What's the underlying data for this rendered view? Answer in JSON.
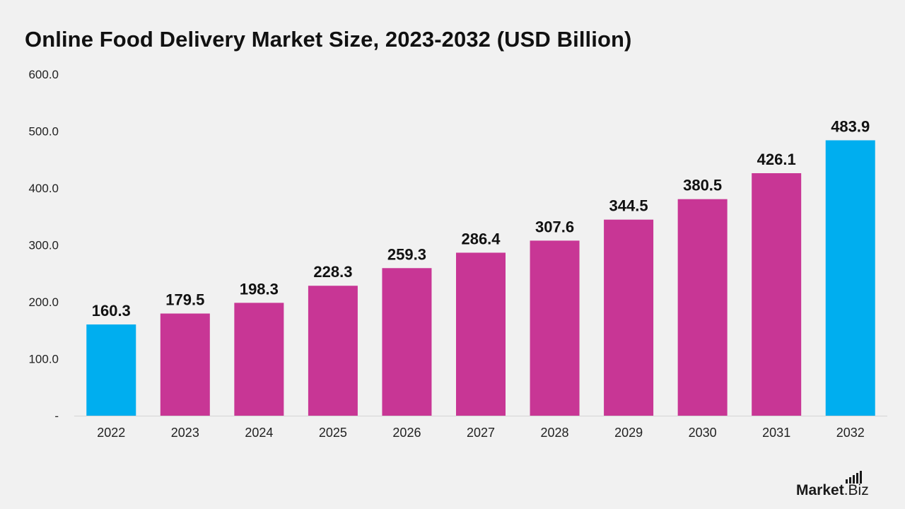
{
  "title": "Online Food Delivery Market Size, 2023-2032 (USD Billion)",
  "logo": {
    "text": "Market.Biz",
    "part1": "Market",
    "part2": ".Biz"
  },
  "colors": {
    "highlight": "#00aeef",
    "primary": "#c83695",
    "text": "#111111",
    "axis": "#222222",
    "baseline": "#d4d4d4",
    "background": "#f1f1f1"
  },
  "chart_data": {
    "type": "bar",
    "title": "Online Food Delivery Market Size, 2023-2032 (USD Billion)",
    "categories": [
      "2022",
      "2023",
      "2024",
      "2025",
      "2026",
      "2027",
      "2028",
      "2029",
      "2030",
      "2031",
      "2032"
    ],
    "values": [
      160.3,
      179.5,
      198.3,
      228.3,
      259.3,
      286.4,
      307.6,
      344.5,
      380.5,
      426.1,
      483.9
    ],
    "value_labels": [
      "160.3",
      "179.5",
      "198.3",
      "228.3",
      "259.3",
      "286.4",
      "307.6",
      "344.5",
      "380.5",
      "426.1",
      "483.9"
    ],
    "highlighted_categories": [
      "2022",
      "2032"
    ],
    "ylim": [
      0,
      600
    ],
    "yticks": [
      0,
      100,
      200,
      300,
      400,
      500,
      600
    ],
    "ytick_labels": [
      "-",
      "100.0",
      "200.0",
      "300.0",
      "400.0",
      "500.0",
      "600.0"
    ],
    "xlabel": "",
    "ylabel": "",
    "grid": false,
    "legend": false
  }
}
